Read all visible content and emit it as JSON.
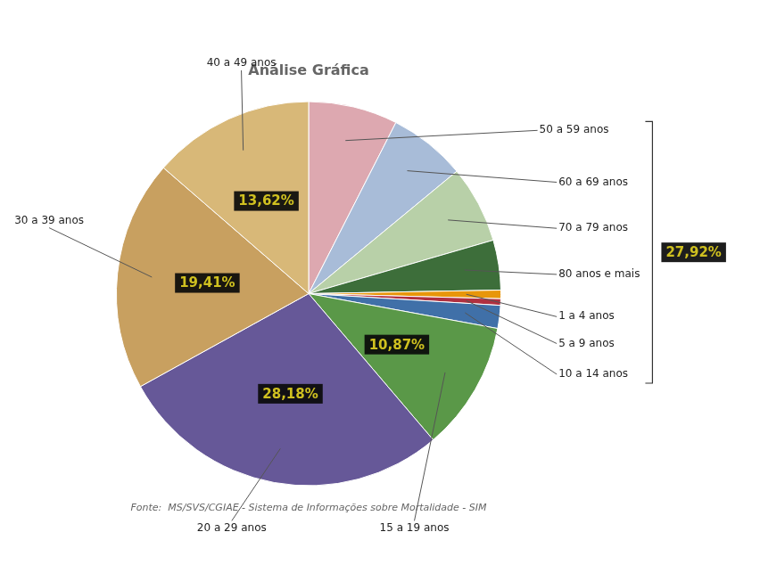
{
  "chart_data": {
    "type": "pie",
    "title": "Análise Gráfica",
    "subtitle": "Fonte:  MS/SVS/CGIAE - Sistema de Informações sobre Mortalidade - SIM",
    "categories": [
      "50 a 59 anos",
      "60 a 69 anos",
      "70 a 79 anos",
      "80 anos e mais",
      "1 a 4 anos",
      "5 a 9 anos",
      "10 a 14 anos",
      "15 a 19 anos",
      "20 a 29 anos",
      "30 a 39 anos",
      "40 a 49 anos"
    ],
    "values": [
      7.5,
      6.5,
      6.5,
      4.2,
      0.72,
      0.55,
      1.93,
      10.87,
      28.18,
      19.41,
      13.62
    ],
    "colors": [
      "#dda8b0",
      "#a8bcd8",
      "#b8d0a8",
      "#3d6e3a",
      "#e8960a",
      "#b03040",
      "#4070a8",
      "#5a9848",
      "#665898",
      "#c8a060",
      "#d8b878"
    ],
    "value_labels": [
      null,
      null,
      null,
      null,
      null,
      null,
      null,
      "10,87%",
      "28,18%",
      "19,41%",
      "13,62%"
    ],
    "annotations": [
      {
        "text": "27,92%",
        "categories": [
          "50 a 59 anos",
          "60 a 69 anos",
          "70 a 79 anos",
          "80 anos e mais",
          "1 a 4 anos",
          "5 a 9 anos",
          "10 a 14 anos"
        ]
      }
    ]
  }
}
